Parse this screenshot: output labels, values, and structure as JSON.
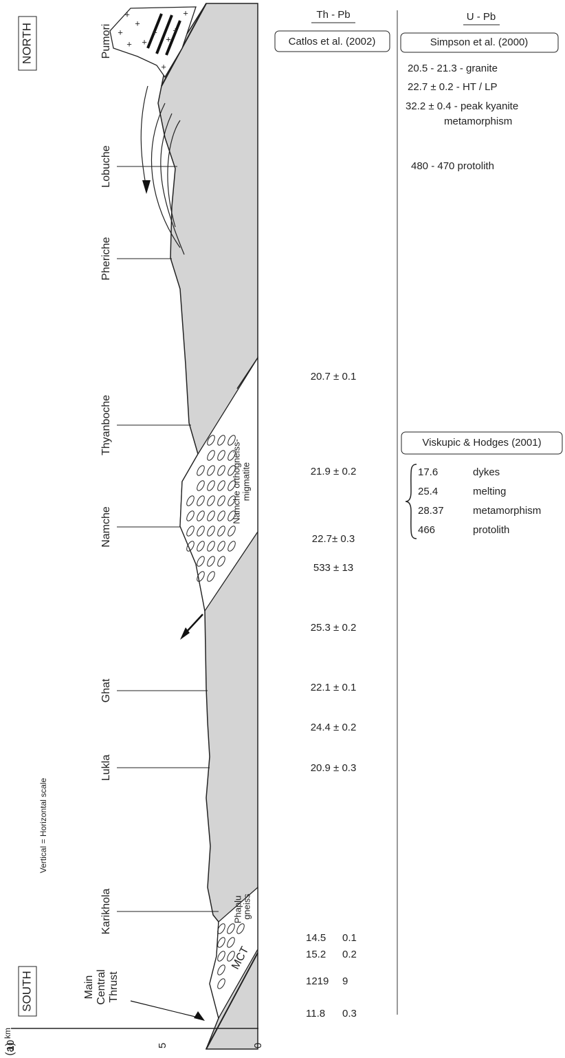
{
  "directions": {
    "north": "NORTH",
    "south": "SOUTH"
  },
  "places": [
    "Pumori",
    "Lobuche",
    "Pheriche",
    "Thyanboche",
    "Namche",
    "Ghat",
    "Lukla",
    "Karikhola"
  ],
  "main_central_thrust": [
    "Main",
    "Central",
    "Thrust"
  ],
  "units": {
    "orthogneiss": [
      "Namche orthogneiss-",
      "migmatite"
    ],
    "phaplu": [
      "Phaplu",
      "gneiss"
    ],
    "mct": "MCT"
  },
  "scale": {
    "note": "Vertical = Horizontal scale",
    "ticks": [
      "10",
      "5",
      "0"
    ],
    "unit": "km"
  },
  "panel": "(a)",
  "th_pb": {
    "header": "Th - Pb",
    "source": "Catlos et al. (2002)",
    "ages": [
      "20.7 ± 0.1",
      "21.9 ± 0.2",
      "22.7± 0.3",
      "533 ± 13",
      "25.3 ± 0.2",
      "22.1 ± 0.1",
      "24.4 ± 0.2",
      "20.9 ± 0.3"
    ],
    "paired_ages": [
      [
        "14.5",
        "0.1"
      ],
      [
        "15.2",
        "0.2"
      ],
      [
        "1219",
        "9"
      ],
      [
        "11.8",
        "0.3"
      ]
    ]
  },
  "u_pb": {
    "header": "U - Pb",
    "source": "Simpson et al. (2000)",
    "lines": [
      "20.5 - 21.3 - granite",
      "22.7 ± 0.2 - HT / LP",
      "32.2 ± 0.4 - peak kyanite",
      "metamorphism",
      "480 - 470 protolith"
    ],
    "source2": "Viskupic & Hodges (2001)",
    "rows": [
      [
        "17.6",
        "dykes"
      ],
      [
        "25.4",
        "melting"
      ],
      [
        "28.37",
        "metamorphism"
      ],
      [
        "466",
        "protolith"
      ]
    ]
  }
}
